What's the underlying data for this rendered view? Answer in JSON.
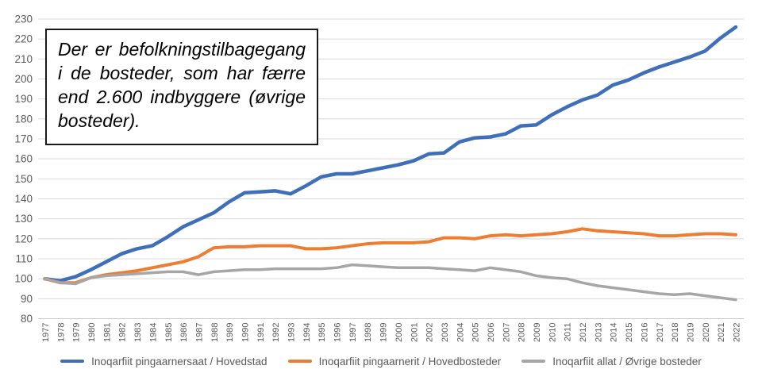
{
  "annotation": {
    "lines": [
      "Der er befolkningstilbagegang",
      "i de bosteder, som har færre",
      "end 2.600 indbyggere (øvrige",
      "bosteder)."
    ]
  },
  "chart_data": {
    "type": "line",
    "title": "",
    "xlabel": "",
    "ylabel": "",
    "x": [
      1977,
      1978,
      1979,
      1980,
      1981,
      1982,
      1983,
      1984,
      1985,
      1986,
      1987,
      1988,
      1989,
      1990,
      1991,
      1992,
      1993,
      1994,
      1995,
      1996,
      1997,
      1998,
      1999,
      2000,
      2001,
      2002,
      2003,
      2004,
      2005,
      2006,
      2007,
      2008,
      2009,
      2010,
      2011,
      2012,
      2013,
      2014,
      2015,
      2016,
      2017,
      2018,
      2019,
      2020,
      2021,
      2022
    ],
    "series": [
      {
        "name": "Inoqarfiit pingaarnersaat / Hovedstad",
        "color": "#3E6FB8",
        "values": [
          100,
          99,
          101,
          104.5,
          108.5,
          112.5,
          115,
          116.5,
          121,
          126,
          129.5,
          133,
          138.5,
          143,
          143.5,
          144,
          142.5,
          146.5,
          151,
          152.5,
          152.5,
          154,
          155.5,
          157,
          159,
          162.5,
          163,
          168.5,
          170.5,
          171,
          172.5,
          176.5,
          177,
          182,
          186,
          189.5,
          192,
          197,
          199.5,
          203,
          206,
          208.5,
          211,
          214,
          220.5,
          226
        ]
      },
      {
        "name": "Inoqarfiit pingaarnerit / Hovedbosteder",
        "color": "#ED7D31",
        "values": [
          100,
          98,
          98,
          100.5,
          102,
          103,
          104,
          105.5,
          107,
          108.5,
          111,
          115.5,
          116,
          116,
          116.5,
          116.5,
          116.5,
          115,
          115,
          115.5,
          116.5,
          117.5,
          118,
          118,
          118,
          118.5,
          120.5,
          120.5,
          120,
          121.5,
          122,
          121.5,
          122,
          122.5,
          123.5,
          125,
          124,
          123.5,
          123,
          122.5,
          121.5,
          121.5,
          122,
          122.5,
          122.5,
          122
        ]
      },
      {
        "name": "Inoqarfiit allat / Øvrige bosteder",
        "color": "#A6A6A6",
        "values": [
          100,
          98,
          97.5,
          100.5,
          101.5,
          102,
          102.5,
          103,
          103.5,
          103.5,
          102,
          103.5,
          104,
          104.5,
          104.5,
          105,
          105,
          105,
          105,
          105.5,
          107,
          106.5,
          106,
          105.5,
          105.5,
          105.5,
          105,
          104.5,
          104,
          105.5,
          104.5,
          103.5,
          101.5,
          100.5,
          100,
          98,
          96.5,
          95.5,
          94.5,
          93.5,
          92.5,
          92,
          92.5,
          91.5,
          90.5,
          89.5
        ]
      }
    ],
    "ylim": [
      80,
      230
    ],
    "ytick_step": 10,
    "grid": true,
    "gridline_color": "#D9D9D9",
    "axis_line_color": "#C8C8C8",
    "ytick_label_color": "#595959",
    "xtick_label_color": "#595959",
    "legend_position": "bottom"
  }
}
